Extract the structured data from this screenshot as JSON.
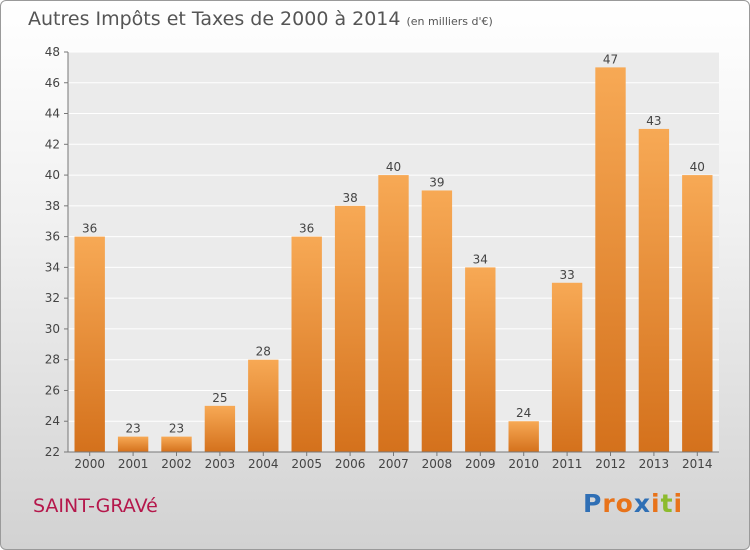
{
  "title": {
    "main": "Autres Impôts et Taxes de 2000 à 2014",
    "unit": "(en milliers d'€)"
  },
  "commune": "SAINT-GRAVé",
  "logo": {
    "letters": [
      "P",
      "r",
      "o",
      "x",
      "i",
      "t",
      "i"
    ],
    "colors": [
      "#2f6fb5",
      "#e8731a",
      "#e8731a",
      "#2f6fb5",
      "#e8731a",
      "#8dbb2e",
      "#e8731a"
    ]
  },
  "chart_data": {
    "type": "bar",
    "categories": [
      "2000",
      "2001",
      "2002",
      "2003",
      "2004",
      "2005",
      "2006",
      "2007",
      "2008",
      "2009",
      "2010",
      "2011",
      "2012",
      "2013",
      "2014"
    ],
    "values": [
      36,
      23,
      23,
      25,
      28,
      36,
      38,
      40,
      39,
      34,
      24,
      33,
      47,
      43,
      40
    ],
    "data_labels": [
      "36",
      "23",
      "23",
      "25",
      "28",
      "36",
      "38",
      "40",
      "39",
      "34",
      "24",
      "33",
      "47",
      "43",
      "40"
    ],
    "ylim": [
      22,
      48
    ],
    "yticks": [
      "22",
      "24",
      "26",
      "28",
      "30",
      "32",
      "34",
      "36",
      "38",
      "40",
      "42",
      "44",
      "46",
      "48"
    ],
    "grid": true,
    "legend": "none",
    "bar_color": "#f28a25"
  }
}
